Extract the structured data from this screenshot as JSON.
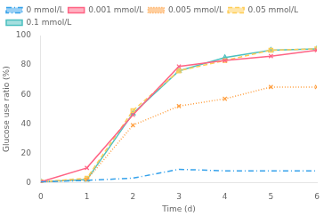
{
  "chart_data": {
    "type": "line",
    "xlabel": "Time (d)",
    "ylabel": "Glucose use ratio (%)",
    "x": [
      0,
      1,
      2,
      3,
      4,
      5,
      6
    ],
    "xlim": [
      0,
      6
    ],
    "ylim": [
      0,
      100
    ],
    "xticks": [
      0,
      1,
      2,
      3,
      4,
      5,
      6
    ],
    "yticks": [
      0,
      20,
      40,
      60,
      80,
      100
    ],
    "grid": false,
    "legend": "upper left",
    "series": [
      {
        "name": "0 mmol/L",
        "values": [
          0.5,
          1.5,
          3.0,
          9.0,
          8.0,
          8.0,
          8.0
        ],
        "line_style": "dashdot",
        "marker": "none"
      },
      {
        "name": "0.001 mmol/L",
        "values": [
          0.5,
          10,
          46,
          79,
          83,
          86,
          90
        ],
        "line_style": "solid",
        "marker": "x"
      },
      {
        "name": "0.005 mmol/L",
        "values": [
          0.5,
          2,
          39,
          52,
          57,
          65,
          65
        ],
        "line_style": "dotted",
        "marker": "x"
      },
      {
        "name": "0.05 mmol/L",
        "values": [
          0.5,
          3,
          49,
          76,
          83,
          90,
          91
        ],
        "line_style": "dashed",
        "marker": "square"
      },
      {
        "name": "0.1 mmol/L",
        "values": [
          0.5,
          2,
          47,
          76,
          85,
          90,
          91
        ],
        "line_style": "solid",
        "marker": "triangle"
      }
    ]
  }
}
